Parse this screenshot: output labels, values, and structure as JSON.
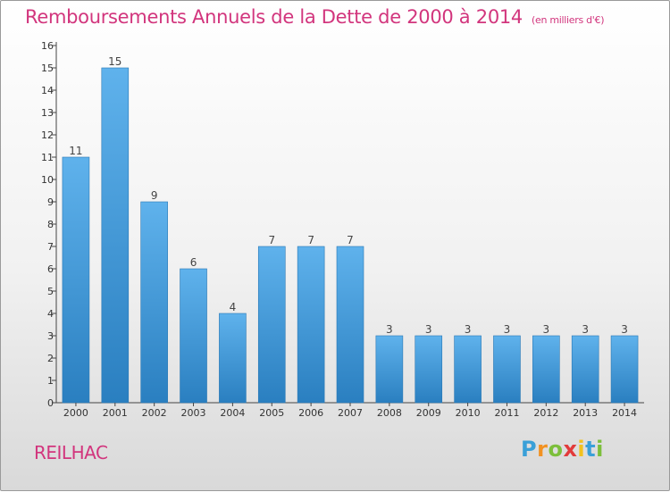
{
  "title": "Remboursements Annuels de la Dette de 2000 à 2014",
  "unit": "(en milliers d'€)",
  "commune": "REILHAC",
  "logo": {
    "p": "P",
    "r": "r",
    "o": "o",
    "x": "x",
    "i1": "i",
    "t": "t",
    "i2": "i"
  },
  "colors": {
    "bar_top": "#5fb2ec",
    "bar_bottom": "#2a7fc0",
    "accent": "#d2357d"
  },
  "chart_data": {
    "type": "bar",
    "categories": [
      "2000",
      "2001",
      "2002",
      "2003",
      "2004",
      "2005",
      "2006",
      "2007",
      "2008",
      "2009",
      "2010",
      "2011",
      "2012",
      "2013",
      "2014"
    ],
    "values": [
      11,
      15,
      9,
      6,
      4,
      7,
      7,
      7,
      3,
      3,
      3,
      3,
      3,
      3,
      3
    ],
    "yticks": [
      0,
      1,
      2,
      3,
      4,
      5,
      6,
      7,
      8,
      9,
      10,
      11,
      12,
      13,
      14,
      15,
      16
    ],
    "ylim": [
      0,
      16
    ],
    "xlabel": "",
    "ylabel": "",
    "grid": false,
    "data_labels": true
  }
}
